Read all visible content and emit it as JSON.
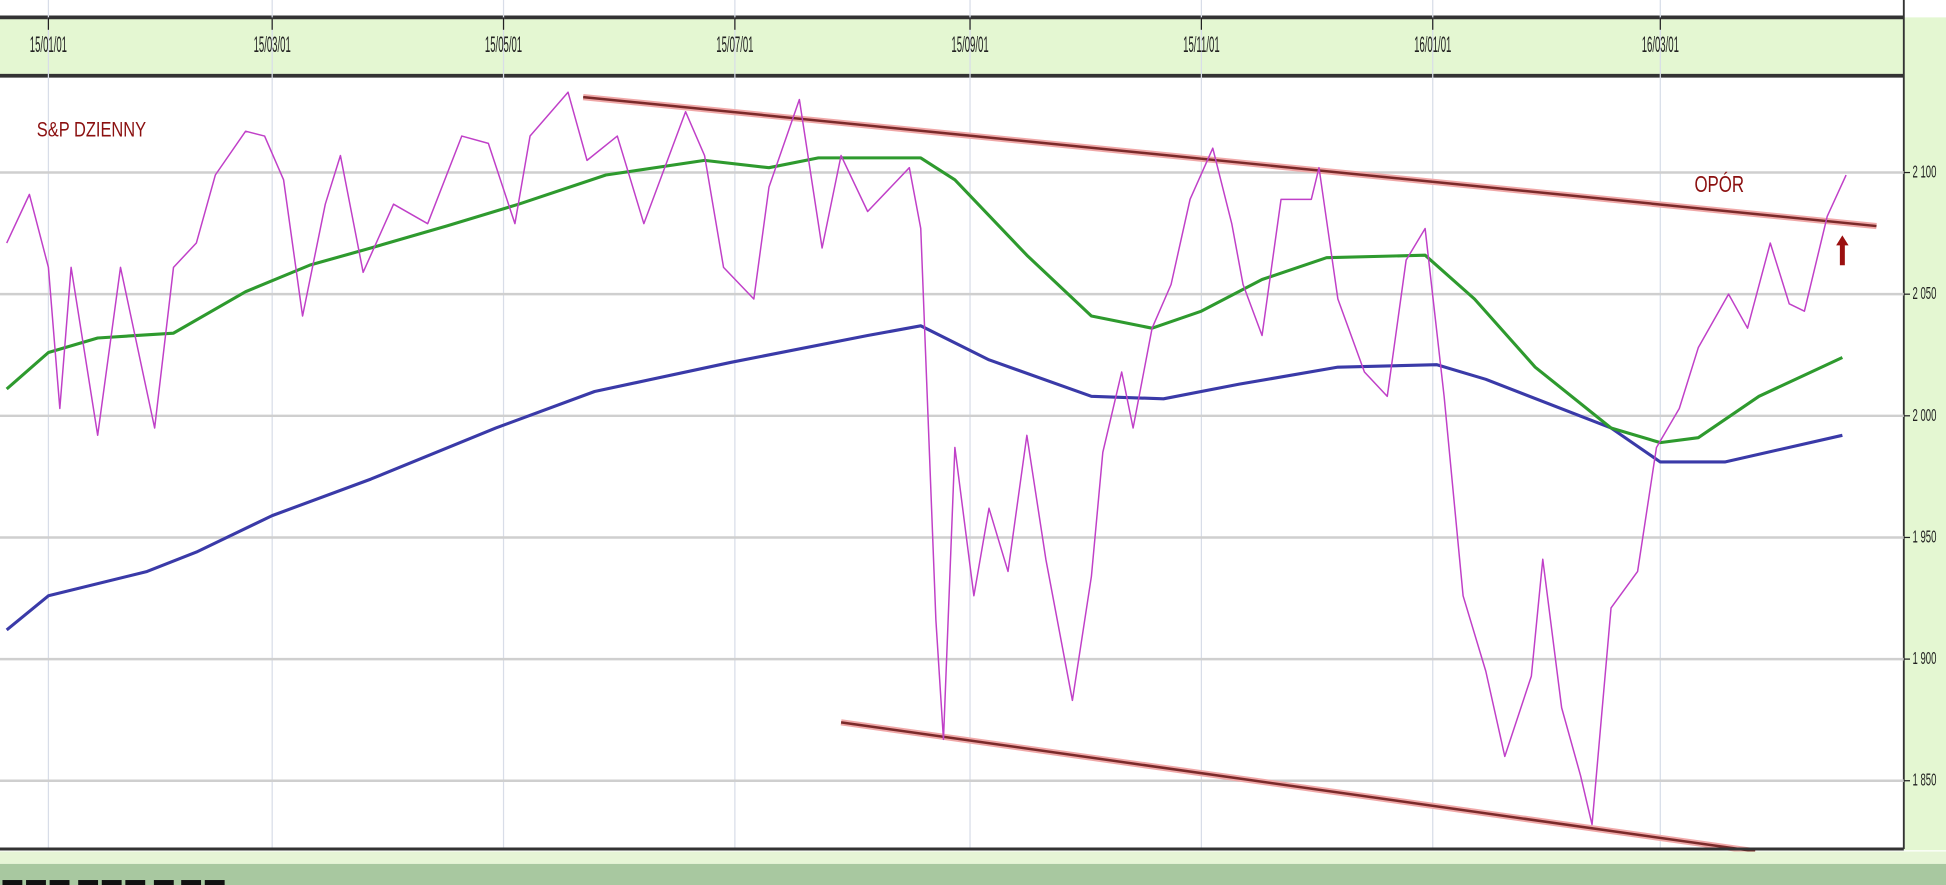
{
  "chart_data": {
    "type": "line",
    "title": "S&P DZIENNY",
    "annotations": [
      {
        "text": "OPÓR",
        "date": "2016-03-10",
        "value": 2092
      },
      {
        "text": "arrow-up",
        "date": "2016-04-18",
        "value": 2067
      }
    ],
    "x_ticks": [
      "15/01/01",
      "15/03/01",
      "15/05/01",
      "15/07/01",
      "15/09/01",
      "15/11/01",
      "16/01/01",
      "16/03/01"
    ],
    "x_tick_dates": [
      "2015-01-01",
      "2015-03-01",
      "2015-05-01",
      "2015-07-01",
      "2015-09-01",
      "2015-11-01",
      "2016-01-01",
      "2016-03-01"
    ],
    "y_ticks": [
      2100,
      2050,
      2000,
      1950,
      1900,
      1850
    ],
    "y_tick_labels": [
      "2 100",
      "2 050",
      "2 000",
      "1 950",
      "1 900",
      "1 850"
    ],
    "ylim": [
      1823,
      2139
    ],
    "xlim": [
      "2014-12-20",
      "2016-05-20"
    ],
    "grid": true,
    "y_axis_side": "right",
    "x_axis_side": "top",
    "colors": {
      "price": "#c040c8",
      "ma_short": "#2e9a2e",
      "ma_long": "#3a3aa8",
      "trend": "#b84040",
      "annotation": "#8b1010",
      "axis_band": "#e4f7d2"
    },
    "series": [
      {
        "key": "price",
        "points": [
          [
            "2014-12-21",
            2071
          ],
          [
            "2014-12-27",
            2091
          ],
          [
            "2015-01-01",
            2061
          ],
          [
            "2015-01-04",
            2003
          ],
          [
            "2015-01-07",
            2061
          ],
          [
            "2015-01-14",
            1992
          ],
          [
            "2015-01-20",
            2061
          ],
          [
            "2015-01-29",
            1995
          ],
          [
            "2015-02-03",
            2061
          ],
          [
            "2015-02-09",
            2071
          ],
          [
            "2015-02-14",
            2099
          ],
          [
            "2015-02-22",
            2117
          ],
          [
            "2015-02-27",
            2115
          ],
          [
            "2015-03-04",
            2097
          ],
          [
            "2015-03-09",
            2041
          ],
          [
            "2015-03-15",
            2087
          ],
          [
            "2015-03-19",
            2107
          ],
          [
            "2015-03-25",
            2059
          ],
          [
            "2015-04-02",
            2087
          ],
          [
            "2015-04-11",
            2079
          ],
          [
            "2015-04-20",
            2115
          ],
          [
            "2015-04-27",
            2112
          ],
          [
            "2015-05-04",
            2079
          ],
          [
            "2015-05-08",
            2115
          ],
          [
            "2015-05-18",
            2133
          ],
          [
            "2015-05-23",
            2105
          ],
          [
            "2015-05-31",
            2115
          ],
          [
            "2015-06-07",
            2079
          ],
          [
            "2015-06-18",
            2125
          ],
          [
            "2015-06-23",
            2107
          ],
          [
            "2015-06-28",
            2061
          ],
          [
            "2015-07-06",
            2048
          ],
          [
            "2015-07-10",
            2094
          ],
          [
            "2015-07-18",
            2130
          ],
          [
            "2015-07-24",
            2069
          ],
          [
            "2015-07-29",
            2107
          ],
          [
            "2015-08-05",
            2084
          ],
          [
            "2015-08-16",
            2102
          ],
          [
            "2015-08-19",
            2077
          ],
          [
            "2015-08-23",
            1916
          ],
          [
            "2015-08-25",
            1867
          ],
          [
            "2015-08-28",
            1987
          ],
          [
            "2015-09-02",
            1926
          ],
          [
            "2015-09-06",
            1962
          ],
          [
            "2015-09-11",
            1936
          ],
          [
            "2015-09-16",
            1992
          ],
          [
            "2015-09-21",
            1941
          ],
          [
            "2015-09-28",
            1883
          ],
          [
            "2015-10-03",
            1934
          ],
          [
            "2015-10-06",
            1985
          ],
          [
            "2015-10-11",
            2018
          ],
          [
            "2015-10-14",
            1995
          ],
          [
            "2015-10-19",
            2036
          ],
          [
            "2015-10-24",
            2054
          ],
          [
            "2015-10-29",
            2089
          ],
          [
            "2015-11-04",
            2110
          ],
          [
            "2015-11-09",
            2079
          ],
          [
            "2015-11-12",
            2054
          ],
          [
            "2015-11-17",
            2033
          ],
          [
            "2015-11-22",
            2089
          ],
          [
            "2015-11-30",
            2089
          ],
          [
            "2015-12-02",
            2102
          ],
          [
            "2015-12-07",
            2048
          ],
          [
            "2015-12-14",
            2018
          ],
          [
            "2015-12-20",
            2008
          ],
          [
            "2015-12-25",
            2064
          ],
          [
            "2015-12-30",
            2077
          ],
          [
            "2016-01-04",
            2008
          ],
          [
            "2016-01-09",
            1926
          ],
          [
            "2016-01-15",
            1895
          ],
          [
            "2016-01-20",
            1860
          ],
          [
            "2016-01-27",
            1893
          ],
          [
            "2016-01-30",
            1941
          ],
          [
            "2016-02-04",
            1880
          ],
          [
            "2016-02-09",
            1852
          ],
          [
            "2016-02-12",
            1832
          ],
          [
            "2016-02-17",
            1921
          ],
          [
            "2016-02-24",
            1936
          ],
          [
            "2016-02-29",
            1987
          ],
          [
            "2016-03-06",
            2003
          ],
          [
            "2016-03-11",
            2028
          ],
          [
            "2016-03-19",
            2050
          ],
          [
            "2016-03-24",
            2036
          ],
          [
            "2016-03-30",
            2071
          ],
          [
            "2016-04-04",
            2046
          ],
          [
            "2016-04-08",
            2043
          ],
          [
            "2016-04-14",
            2082
          ],
          [
            "2016-04-19",
            2099
          ]
        ]
      },
      {
        "key": "ma_short",
        "points": [
          [
            "2014-12-21",
            2011
          ],
          [
            "2015-01-01",
            2026
          ],
          [
            "2015-01-14",
            2032
          ],
          [
            "2015-02-03",
            2034
          ],
          [
            "2015-02-22",
            2051
          ],
          [
            "2015-03-11",
            2062
          ],
          [
            "2015-03-27",
            2069
          ],
          [
            "2015-04-16",
            2078
          ],
          [
            "2015-05-05",
            2087
          ],
          [
            "2015-05-28",
            2099
          ],
          [
            "2015-06-23",
            2105
          ],
          [
            "2015-07-10",
            2102
          ],
          [
            "2015-07-23",
            2106
          ],
          [
            "2015-08-19",
            2106
          ],
          [
            "2015-08-28",
            2097
          ],
          [
            "2015-09-16",
            2066
          ],
          [
            "2015-10-03",
            2041
          ],
          [
            "2015-10-19",
            2036
          ],
          [
            "2015-11-01",
            2043
          ],
          [
            "2015-11-17",
            2056
          ],
          [
            "2015-12-04",
            2065
          ],
          [
            "2015-12-30",
            2066
          ],
          [
            "2016-01-12",
            2048
          ],
          [
            "2016-01-28",
            2020
          ],
          [
            "2016-02-17",
            1995
          ],
          [
            "2016-03-01",
            1989
          ],
          [
            "2016-03-11",
            1991
          ],
          [
            "2016-03-27",
            2008
          ],
          [
            "2016-04-18",
            2024
          ]
        ]
      },
      {
        "key": "ma_long",
        "points": [
          [
            "2014-12-21",
            1912
          ],
          [
            "2015-01-01",
            1926
          ],
          [
            "2015-01-27",
            1936
          ],
          [
            "2015-02-09",
            1944
          ],
          [
            "2015-03-01",
            1959
          ],
          [
            "2015-03-27",
            1974
          ],
          [
            "2015-04-29",
            1995
          ],
          [
            "2015-05-25",
            2010
          ],
          [
            "2015-06-30",
            2022
          ],
          [
            "2015-08-05",
            2033
          ],
          [
            "2015-08-19",
            2037
          ],
          [
            "2015-09-06",
            2023
          ],
          [
            "2015-10-03",
            2008
          ],
          [
            "2015-10-22",
            2007
          ],
          [
            "2015-11-11",
            2013
          ],
          [
            "2015-12-07",
            2020
          ],
          [
            "2016-01-02",
            2021
          ],
          [
            "2016-01-15",
            2015
          ],
          [
            "2016-02-17",
            1995
          ],
          [
            "2016-03-01",
            1981
          ],
          [
            "2016-03-18",
            1981
          ],
          [
            "2016-04-18",
            1992
          ]
        ]
      }
    ],
    "trend_lines": [
      {
        "label": "resistance",
        "points": [
          [
            "2015-05-22",
            2131
          ],
          [
            "2016-04-27",
            2078
          ]
        ]
      },
      {
        "label": "support",
        "points": [
          [
            "2015-07-29",
            1874
          ],
          [
            "2016-03-26",
            1821
          ]
        ]
      }
    ]
  }
}
